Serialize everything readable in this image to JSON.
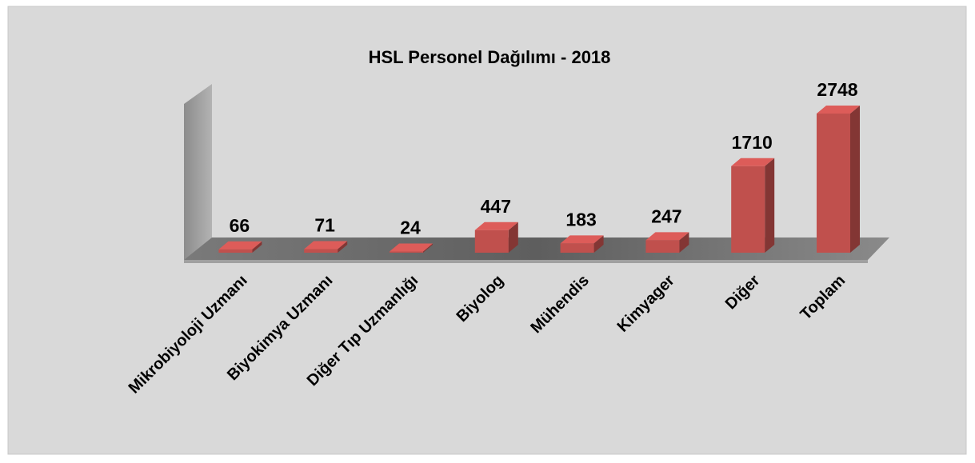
{
  "chart_data": {
    "type": "bar3d",
    "title": "HSL Personel Dağılımı - 2018",
    "categories": [
      "Mikrobiyoloji Uzmanı",
      "Biyokimya Uzmanı",
      "Diğer Tıp Uzmanlığı",
      "Biyolog",
      "Mühendis",
      "Kimyager",
      "Diğer",
      "Toplam"
    ],
    "values": [
      66,
      71,
      24,
      447,
      183,
      247,
      1710,
      2748
    ],
    "color": "#c0504d"
  }
}
